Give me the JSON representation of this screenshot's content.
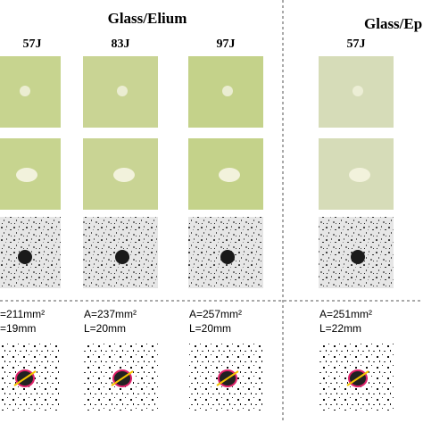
{
  "header": {
    "left_title": "Glass/Elium",
    "right_title": "Glass/Ep"
  },
  "columns": [
    {
      "energy": "57J",
      "area": "=211mm²",
      "length": "=19mm"
    },
    {
      "energy": "83J",
      "area": "A=237mm²",
      "length": "L=20mm"
    },
    {
      "energy": "97J",
      "area": "A=257mm²",
      "length": "L=20mm"
    },
    {
      "energy": "57J",
      "area": "A=251mm²",
      "length": "L=22mm"
    }
  ]
}
